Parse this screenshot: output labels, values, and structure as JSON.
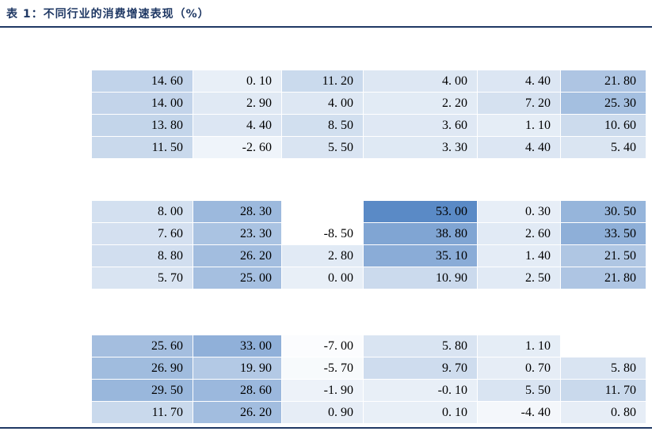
{
  "title": "表 1：不同行业的消费增速表现（%）",
  "colors": {
    "title_text": "#1F3864",
    "rule_line": "#1F3864",
    "cell_text": "#000000",
    "heat_min_color": "#FFFFFF",
    "heat_max_color": "#5A8AC6"
  },
  "heatmap_scale": {
    "min": -8.5,
    "max": 53.0
  },
  "table": {
    "blocks": [
      {
        "rows": [
          [
            "14. 60",
            "0. 10",
            "11. 20",
            "4. 00",
            "4. 40",
            "21. 80"
          ],
          [
            "14. 00",
            "2. 90",
            "4. 00",
            "2. 20",
            "7. 20",
            "25. 30"
          ],
          [
            "13. 80",
            "4. 40",
            "8. 50",
            "3. 60",
            "1. 10",
            "10. 60"
          ],
          [
            "11. 50",
            "-2. 60",
            "5. 50",
            "3. 30",
            "4. 40",
            "5. 40"
          ]
        ]
      },
      {
        "rows": [
          [
            "8. 00",
            "28. 30",
            "",
            "53. 00",
            "0. 30",
            "30. 50"
          ],
          [
            "7. 60",
            "23. 30",
            "-8. 50",
            "38. 80",
            "2. 60",
            "33. 50"
          ],
          [
            "8. 80",
            "26. 20",
            "2. 80",
            "35. 10",
            "1. 40",
            "21. 50"
          ],
          [
            "5. 70",
            "25. 00",
            "0. 00",
            "10. 90",
            "2. 50",
            "21. 80"
          ]
        ]
      },
      {
        "rows": [
          [
            "25. 60",
            "33. 00",
            "-7. 00",
            "5. 80",
            "1. 10",
            null
          ],
          [
            "26. 90",
            "19. 90",
            "-5. 70",
            "9. 70",
            "0. 70",
            "5. 80"
          ],
          [
            "29. 50",
            "28. 60",
            "-1. 90",
            "-0. 10",
            "5. 50",
            "11. 70"
          ],
          [
            "11. 70",
            "26. 20",
            "0. 90",
            "0. 10",
            "-4. 40",
            "0. 80"
          ]
        ]
      }
    ]
  }
}
